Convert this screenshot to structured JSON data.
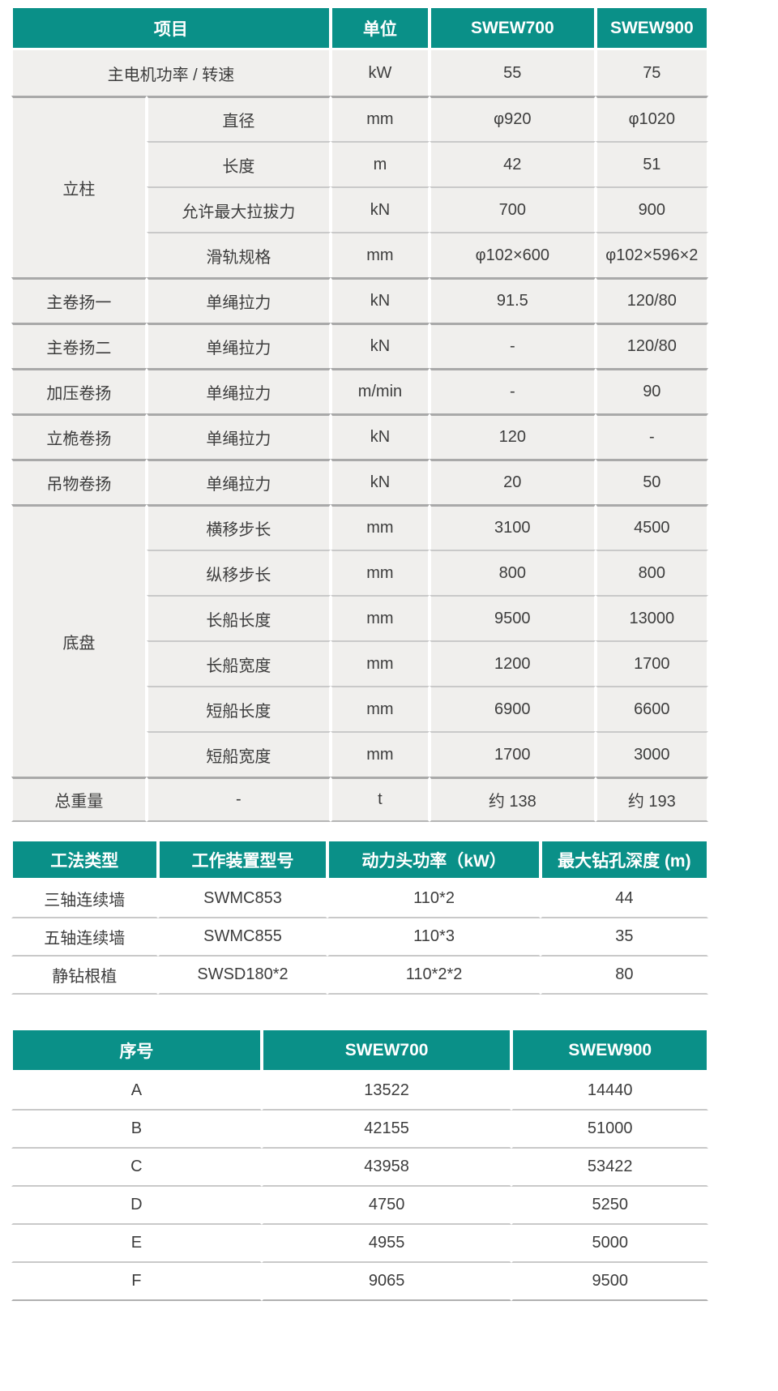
{
  "theme": {
    "header_bg": "#0a9088",
    "header_text": "#ffffff",
    "row_bg": "#f0efed",
    "body_text": "#3d3d3d",
    "inner_line": "#c9c9c9",
    "group_line": "#a9a9a9"
  },
  "tables": {
    "spec_table": {
      "headers": [
        {
          "t": "项目",
          "cs": 2
        },
        {
          "t": "单位"
        },
        {
          "t": "SWEW700"
        },
        {
          "t": "SWEW900"
        }
      ],
      "rows": [
        {
          "cells": [
            {
              "t": "主电机功率 / 转速",
              "cs": 2
            },
            {
              "t": "kW"
            },
            {
              "t": "55"
            },
            {
              "t": "75"
            }
          ]
        },
        {
          "grp": true,
          "cells": [
            {
              "t": "立柱",
              "rs": 4
            },
            {
              "t": "直径"
            },
            {
              "t": "mm"
            },
            {
              "t": "φ920"
            },
            {
              "t": "φ1020"
            }
          ]
        },
        {
          "cells": [
            {
              "t": "长度"
            },
            {
              "t": "m"
            },
            {
              "t": "42"
            },
            {
              "t": "51"
            }
          ]
        },
        {
          "cells": [
            {
              "t": "允许最大拉拔力"
            },
            {
              "t": "kN"
            },
            {
              "t": "700"
            },
            {
              "t": "900"
            }
          ]
        },
        {
          "cells": [
            {
              "t": "滑轨规格"
            },
            {
              "t": "mm"
            },
            {
              "t": "φ102×600"
            },
            {
              "t": "φ102×596×2"
            }
          ]
        },
        {
          "grp": true,
          "cells": [
            {
              "t": "主卷扬一"
            },
            {
              "t": "单绳拉力"
            },
            {
              "t": "kN"
            },
            {
              "t": "91.5"
            },
            {
              "t": "120/80"
            }
          ]
        },
        {
          "grp": true,
          "cells": [
            {
              "t": "主卷扬二"
            },
            {
              "t": "单绳拉力"
            },
            {
              "t": "kN"
            },
            {
              "t": "-"
            },
            {
              "t": "120/80"
            }
          ]
        },
        {
          "grp": true,
          "cells": [
            {
              "t": "加压卷扬"
            },
            {
              "t": "单绳拉力"
            },
            {
              "t": "m/min"
            },
            {
              "t": "-"
            },
            {
              "t": "90"
            }
          ]
        },
        {
          "grp": true,
          "cells": [
            {
              "t": "立桅卷扬"
            },
            {
              "t": "单绳拉力"
            },
            {
              "t": "kN"
            },
            {
              "t": "120"
            },
            {
              "t": "-"
            }
          ]
        },
        {
          "grp": true,
          "cells": [
            {
              "t": "吊物卷扬"
            },
            {
              "t": "单绳拉力"
            },
            {
              "t": "kN"
            },
            {
              "t": "20"
            },
            {
              "t": "50"
            }
          ]
        },
        {
          "grp": true,
          "cells": [
            {
              "t": "底盘",
              "rs": 6
            },
            {
              "t": "横移步长"
            },
            {
              "t": "mm"
            },
            {
              "t": "3100"
            },
            {
              "t": "4500"
            }
          ]
        },
        {
          "cells": [
            {
              "t": "纵移步长"
            },
            {
              "t": "mm"
            },
            {
              "t": "800"
            },
            {
              "t": "800"
            }
          ]
        },
        {
          "cells": [
            {
              "t": "长船长度"
            },
            {
              "t": "mm"
            },
            {
              "t": "9500"
            },
            {
              "t": "13000"
            }
          ]
        },
        {
          "cells": [
            {
              "t": "长船宽度"
            },
            {
              "t": "mm"
            },
            {
              "t": "1200"
            },
            {
              "t": "1700"
            }
          ]
        },
        {
          "cells": [
            {
              "t": "短船长度"
            },
            {
              "t": "mm"
            },
            {
              "t": "6900"
            },
            {
              "t": "6600"
            }
          ]
        },
        {
          "cells": [
            {
              "t": "短船宽度"
            },
            {
              "t": "mm"
            },
            {
              "t": "1700"
            },
            {
              "t": "3000"
            }
          ]
        },
        {
          "grp": true,
          "cells": [
            {
              "t": "总重量"
            },
            {
              "t": "-"
            },
            {
              "t": "t"
            },
            {
              "t": "约 138"
            },
            {
              "t": "约 193"
            }
          ]
        }
      ]
    },
    "method_table": {
      "headers": [
        {
          "t": "工法类型"
        },
        {
          "t": "工作装置型号"
        },
        {
          "t": "动力头功率（kW）"
        },
        {
          "t": "最大钻孔深度 (m)"
        }
      ],
      "rows": [
        {
          "cells": [
            {
              "t": "三轴连续墙"
            },
            {
              "t": "SWMC853"
            },
            {
              "t": "110*2"
            },
            {
              "t": "44"
            }
          ]
        },
        {
          "cells": [
            {
              "t": "五轴连续墙"
            },
            {
              "t": "SWMC855"
            },
            {
              "t": "110*3"
            },
            {
              "t": "35"
            }
          ]
        },
        {
          "cells": [
            {
              "t": "静钻根植"
            },
            {
              "t": "SWSD180*2"
            },
            {
              "t": "110*2*2"
            },
            {
              "t": "80"
            }
          ]
        }
      ]
    },
    "dimension_table": {
      "headers": [
        {
          "t": "序号"
        },
        {
          "t": "SWEW700"
        },
        {
          "t": "SWEW900"
        }
      ],
      "rows": [
        {
          "cells": [
            {
              "t": "A"
            },
            {
              "t": "13522"
            },
            {
              "t": "14440"
            }
          ]
        },
        {
          "cells": [
            {
              "t": "B"
            },
            {
              "t": "42155"
            },
            {
              "t": "51000"
            }
          ]
        },
        {
          "cells": [
            {
              "t": "C"
            },
            {
              "t": "43958"
            },
            {
              "t": "53422"
            }
          ]
        },
        {
          "cells": [
            {
              "t": "D"
            },
            {
              "t": "4750"
            },
            {
              "t": "5250"
            }
          ]
        },
        {
          "cells": [
            {
              "t": "E"
            },
            {
              "t": "4955"
            },
            {
              "t": "5000"
            }
          ]
        },
        {
          "cells": [
            {
              "t": "F"
            },
            {
              "t": "9065"
            },
            {
              "t": "9500"
            }
          ]
        }
      ]
    }
  }
}
